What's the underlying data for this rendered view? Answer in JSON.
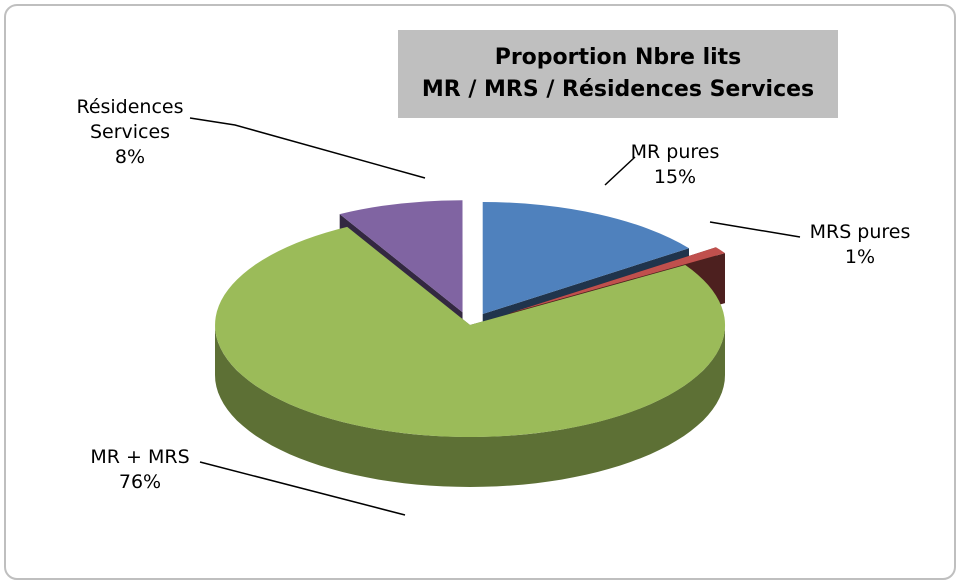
{
  "chart_data": {
    "type": "pie",
    "title": "Proportion Nbre lits\nMR / MRS / Résidences Services",
    "categories": [
      "MR pures",
      "MRS pures",
      "MR + MRS",
      "Résidences Services"
    ],
    "values": [
      15,
      1,
      76,
      8
    ],
    "value_labels": [
      "15%",
      "1%",
      "76%",
      "8%"
    ],
    "colors": [
      "#4f81bd",
      "#c0504d",
      "#9bbb59",
      "#8064a2"
    ]
  }
}
